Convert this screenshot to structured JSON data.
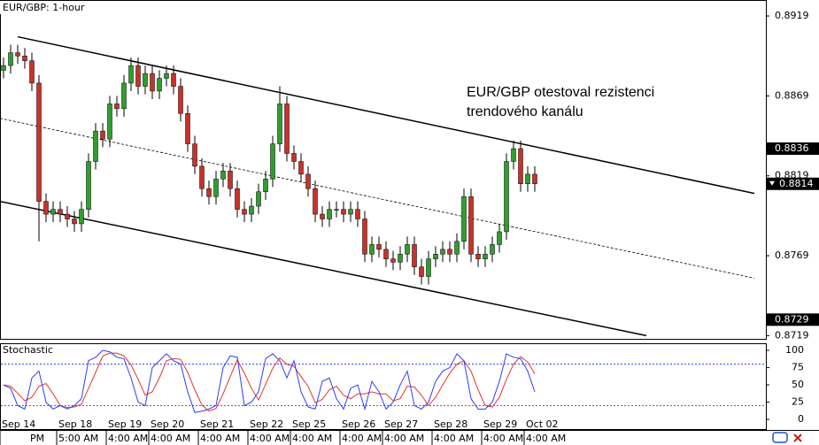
{
  "chart_data": [
    {
      "type": "candlestick",
      "title": "EUR/GBP: 1-hour",
      "annotation": [
        "EUR/GBP otestoval rezistenci",
        "trendového kanálu"
      ],
      "categories": [
        "Sep 14",
        null,
        null,
        null,
        null,
        null,
        null,
        null,
        "Sep 18",
        null,
        null,
        null,
        null,
        null,
        null,
        "Sep 19",
        null,
        null,
        null,
        null,
        null,
        "Sep 20",
        null,
        null,
        null,
        null,
        null,
        null,
        "Sep 21",
        null,
        null,
        null,
        null,
        null,
        null,
        "Sep 22",
        null,
        null,
        null,
        null,
        null,
        "Sep 25",
        null,
        null,
        null,
        null,
        null,
        null,
        "Sep 26",
        null,
        null,
        null,
        null,
        null,
        "Sep 27",
        null,
        null,
        null,
        null,
        null,
        null,
        "Sep 28",
        null,
        null,
        null,
        null,
        null,
        null,
        "Sep 29",
        null,
        null,
        null,
        null,
        null,
        "Oct 02",
        null
      ],
      "time_labels": [
        null,
        null,
        null,
        null,
        "PM",
        null,
        null,
        null,
        "5:00 AM",
        null,
        null,
        null,
        null,
        null,
        null,
        "4:00 AM",
        null,
        null,
        null,
        null,
        null,
        "4:00 AM",
        null,
        null,
        null,
        null,
        null,
        null,
        "4:00 AM",
        null,
        null,
        null,
        null,
        null,
        null,
        "4:00 AM",
        null,
        null,
        null,
        null,
        null,
        "4:00 AM",
        null,
        null,
        null,
        null,
        null,
        null,
        "4:00 AM",
        null,
        null,
        null,
        null,
        null,
        "4:00 AM",
        null,
        null,
        null,
        null,
        null,
        null,
        "4:00 AM",
        null,
        null,
        null,
        null,
        null,
        null,
        "4:00 AM",
        null,
        null,
        null,
        null,
        null,
        "4:00 AM",
        null
      ],
      "open": [
        0.8885,
        0.8888,
        0.8896,
        0.8894,
        0.8891,
        0.8877,
        0.8803,
        0.8795,
        0.8798,
        0.8795,
        0.8792,
        0.8789,
        0.8798,
        0.8828,
        0.8847,
        0.8842,
        0.8864,
        0.8861,
        0.8877,
        0.8888,
        0.8875,
        0.8883,
        0.8872,
        0.888,
        0.8883,
        0.8875,
        0.8858,
        0.8839,
        0.8825,
        0.8811,
        0.8806,
        0.8817,
        0.8822,
        0.8811,
        0.8798,
        0.8795,
        0.88,
        0.8809,
        0.8817,
        0.8839,
        0.8864,
        0.8833,
        0.8828,
        0.882,
        0.8811,
        0.8795,
        0.8792,
        0.8798,
        0.8798,
        0.8795,
        0.8798,
        0.8792,
        0.877,
        0.8776,
        0.8773,
        0.8767,
        0.8765,
        0.877,
        0.8776,
        0.8762,
        0.8756,
        0.8767,
        0.877,
        0.8773,
        0.877,
        0.8778,
        0.8806,
        0.877,
        0.8767,
        0.877,
        0.8776,
        0.8784,
        0.8828,
        0.8836,
        0.8814,
        0.882
      ],
      "high": [
        0.8893,
        0.8901,
        0.8901,
        0.8899,
        0.8896,
        0.8882,
        0.8808,
        0.8803,
        0.8803,
        0.88,
        0.8797,
        0.8803,
        0.8833,
        0.8852,
        0.8852,
        0.8869,
        0.8869,
        0.8882,
        0.8893,
        0.8893,
        0.8888,
        0.8888,
        0.8885,
        0.8888,
        0.8888,
        0.888,
        0.8863,
        0.8844,
        0.883,
        0.8816,
        0.8822,
        0.8827,
        0.8827,
        0.8816,
        0.8803,
        0.8805,
        0.8814,
        0.8822,
        0.8844,
        0.8875,
        0.8869,
        0.8838,
        0.8833,
        0.8825,
        0.8816,
        0.88,
        0.8803,
        0.8803,
        0.8803,
        0.8803,
        0.8803,
        0.8797,
        0.8781,
        0.8781,
        0.8778,
        0.8772,
        0.8775,
        0.8781,
        0.8781,
        0.8767,
        0.8772,
        0.8775,
        0.8778,
        0.8778,
        0.8783,
        0.8811,
        0.8811,
        0.8775,
        0.8775,
        0.8781,
        0.8789,
        0.8833,
        0.8841,
        0.8841,
        0.8825,
        0.8825
      ],
      "low": [
        0.888,
        0.8883,
        0.8889,
        0.8886,
        0.8872,
        0.8778,
        0.879,
        0.879,
        0.879,
        0.8787,
        0.8784,
        0.8784,
        0.8793,
        0.8823,
        0.8837,
        0.8837,
        0.8856,
        0.8856,
        0.8872,
        0.887,
        0.887,
        0.8867,
        0.8867,
        0.8875,
        0.887,
        0.8853,
        0.8834,
        0.882,
        0.8806,
        0.8801,
        0.8801,
        0.8812,
        0.8806,
        0.8793,
        0.879,
        0.879,
        0.8795,
        0.8804,
        0.8812,
        0.8834,
        0.8828,
        0.8823,
        0.8815,
        0.8806,
        0.879,
        0.8787,
        0.8787,
        0.8793,
        0.879,
        0.879,
        0.8787,
        0.8765,
        0.8765,
        0.8768,
        0.8762,
        0.876,
        0.876,
        0.8765,
        0.8757,
        0.8751,
        0.8751,
        0.8762,
        0.8765,
        0.8765,
        0.8765,
        0.8773,
        0.8765,
        0.8762,
        0.8762,
        0.8765,
        0.8771,
        0.8779,
        0.8823,
        0.8809,
        0.8809,
        0.8809
      ],
      "close": [
        0.8888,
        0.8896,
        0.8894,
        0.8891,
        0.8877,
        0.8803,
        0.8795,
        0.8798,
        0.8795,
        0.8792,
        0.8789,
        0.8798,
        0.8828,
        0.8847,
        0.8842,
        0.8864,
        0.8861,
        0.8877,
        0.8888,
        0.8875,
        0.8883,
        0.8872,
        0.888,
        0.8883,
        0.8875,
        0.8858,
        0.8839,
        0.8825,
        0.8811,
        0.8806,
        0.8817,
        0.8822,
        0.8811,
        0.8798,
        0.8795,
        0.88,
        0.8809,
        0.8817,
        0.8839,
        0.8864,
        0.8833,
        0.8828,
        0.882,
        0.8811,
        0.8795,
        0.8792,
        0.8798,
        0.8798,
        0.8795,
        0.8798,
        0.8792,
        0.877,
        0.8776,
        0.8773,
        0.8767,
        0.8765,
        0.877,
        0.8776,
        0.8762,
        0.8756,
        0.8767,
        0.877,
        0.8773,
        0.877,
        0.8778,
        0.8806,
        0.877,
        0.8767,
        0.877,
        0.8776,
        0.8784,
        0.8828,
        0.8836,
        0.8814,
        0.882,
        0.8814
      ],
      "up_color": "#2f9e2f",
      "down_color": "#c8322a",
      "ylim": [
        0.8717,
        0.8929
      ],
      "yticks": [
        0.8919,
        0.8869,
        0.8819,
        0.8769,
        0.8719
      ],
      "price_markers": [
        0.8836,
        0.8729
      ],
      "last_price": 0.8814,
      "trendlines": [
        {
          "style": "solid",
          "x": [
            2,
            106
          ],
          "y": [
            0.8906,
            0.8808
          ]
        },
        {
          "style": "dotted",
          "x": [
            -0.5,
            106
          ],
          "y": [
            0.8855,
            0.8755
          ]
        },
        {
          "style": "solid",
          "x": [
            -0.5,
            90.75
          ],
          "y": [
            0.8803,
            0.8719
          ]
        }
      ]
    },
    {
      "type": "line",
      "title": "Stochastic",
      "series": [
        {
          "color": "#2a3cff",
          "values": [
            50,
            45,
            20,
            15,
            60,
            70,
            25,
            15,
            20,
            15,
            20,
            30,
            85,
            90,
            100,
            98,
            90,
            88,
            60,
            25,
            20,
            75,
            85,
            95,
            85,
            80,
            40,
            10,
            12,
            15,
            20,
            75,
            92,
            90,
            20,
            25,
            40,
            88,
            95,
            85,
            60,
            85,
            40,
            18,
            15,
            55,
            60,
            30,
            15,
            45,
            50,
            15,
            55,
            40,
            15,
            25,
            50,
            70,
            20,
            15,
            25,
            55,
            70,
            75,
            95,
            85,
            30,
            15,
            15,
            25,
            55,
            95,
            90,
            88,
            70,
            40
          ]
        },
        {
          "color": "#e8332a",
          "values": [
            50,
            48,
            38,
            27,
            32,
            48,
            52,
            37,
            20,
            17,
            18,
            22,
            45,
            68,
            92,
            96,
            96,
            92,
            79,
            58,
            35,
            40,
            60,
            85,
            88,
            87,
            68,
            43,
            21,
            12,
            16,
            37,
            62,
            86,
            67,
            45,
            28,
            51,
            74,
            89,
            80,
            77,
            62,
            48,
            24,
            29,
            43,
            48,
            35,
            30,
            37,
            37,
            40,
            37,
            37,
            27,
            30,
            48,
            47,
            35,
            20,
            32,
            50,
            67,
            80,
            85,
            70,
            43,
            20,
            18,
            32,
            58,
            80,
            91,
            83,
            66
          ]
        }
      ],
      "levels": [
        {
          "value": 80,
          "color": "#2a3cff"
        },
        {
          "value": 20,
          "color": "#e8332a"
        }
      ],
      "ylim": [
        -14,
        109
      ],
      "yticks": [
        100,
        75,
        50,
        25,
        0
      ]
    }
  ]
}
